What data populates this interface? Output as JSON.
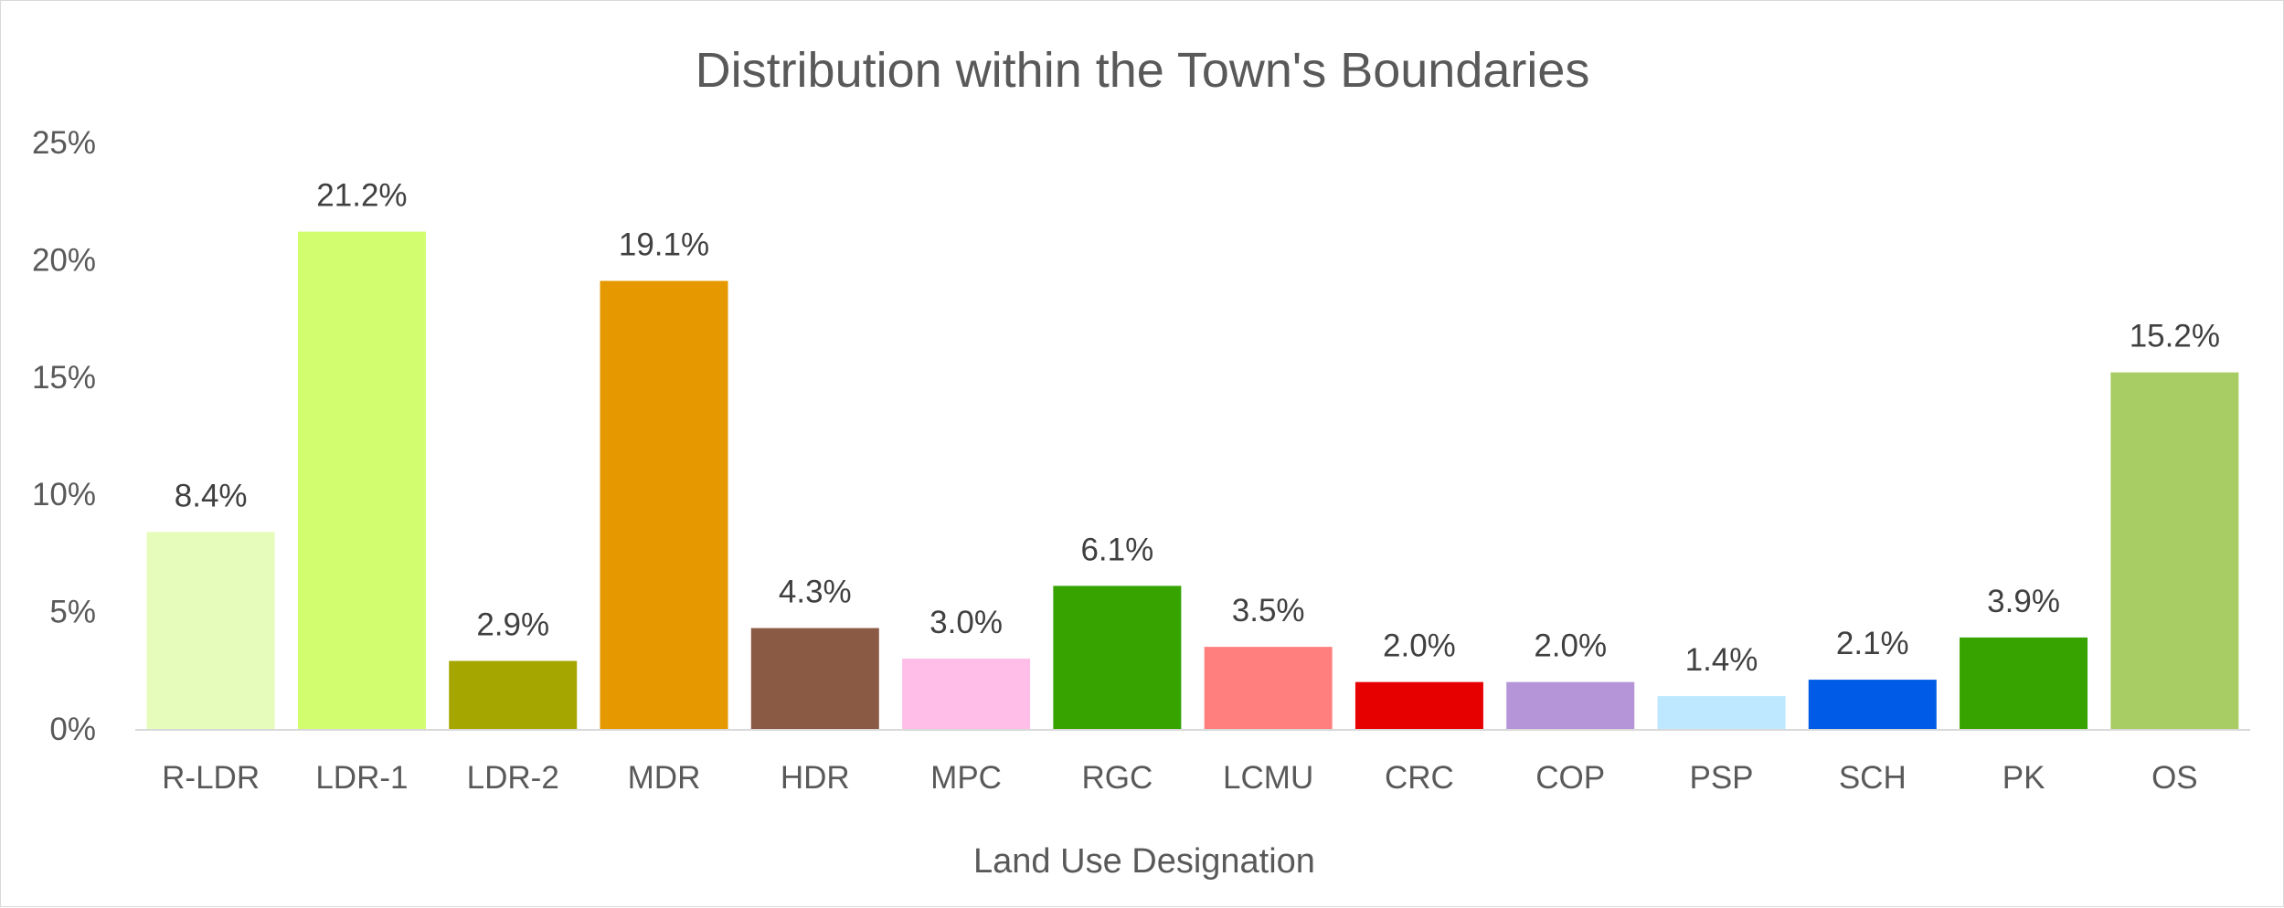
{
  "chart_data": {
    "type": "bar",
    "title": "Distribution within the Town's Boundaries",
    "xlabel": "Land Use Designation",
    "ylabel": "",
    "ylim": [
      0,
      25
    ],
    "yticks": [
      "0%",
      "5%",
      "10%",
      "15%",
      "20%",
      "25%"
    ],
    "ytick_values": [
      0,
      5,
      10,
      15,
      20,
      25
    ],
    "grid": false,
    "legend": "none",
    "categories": [
      "R-LDR",
      "LDR-1",
      "LDR-2",
      "MDR",
      "HDR",
      "MPC",
      "RGC",
      "LCMU",
      "CRC",
      "COP",
      "PSP",
      "SCH",
      "PK",
      "OS"
    ],
    "values": [
      8.4,
      21.2,
      2.9,
      19.1,
      4.3,
      3.0,
      6.1,
      3.5,
      2.0,
      2.0,
      1.4,
      2.1,
      3.9,
      15.2
    ],
    "data_labels": [
      "8.4%",
      "21.2%",
      "2.9%",
      "19.1%",
      "4.3%",
      "3.0%",
      "6.1%",
      "3.5%",
      "2.0%",
      "2.0%",
      "1.4%",
      "2.1%",
      "3.9%",
      "15.2%"
    ],
    "colors": [
      "#e5fcba",
      "#d1fd6f",
      "#a6a600",
      "#e59800",
      "#8b5a44",
      "#ffbee8",
      "#36a300",
      "#ff7f7f",
      "#e60000",
      "#b595d8",
      "#bee8ff",
      "#005ce6",
      "#36a300",
      "#a8cd65"
    ]
  }
}
